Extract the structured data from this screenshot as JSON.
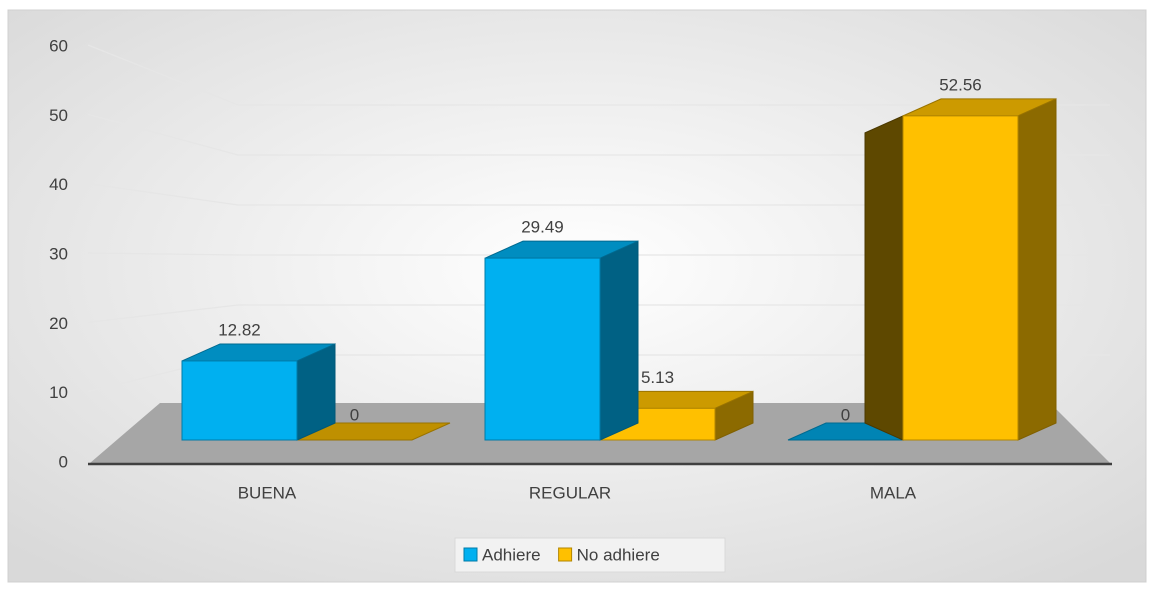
{
  "chart_data": {
    "type": "bar3d",
    "categories": [
      "BUENA",
      "REGULAR",
      "MALA"
    ],
    "series": [
      {
        "name": "Adhiere",
        "color": "#00b0f0",
        "values": [
          12.82,
          29.49,
          0
        ]
      },
      {
        "name": "No adhiere",
        "color": "#ffc000",
        "values": [
          0,
          5.13,
          52.56
        ]
      }
    ],
    "ylim": [
      0,
      60
    ],
    "yticks": [
      0,
      10,
      20,
      30,
      40,
      50,
      60
    ],
    "grid": true,
    "legend": "bottom"
  }
}
